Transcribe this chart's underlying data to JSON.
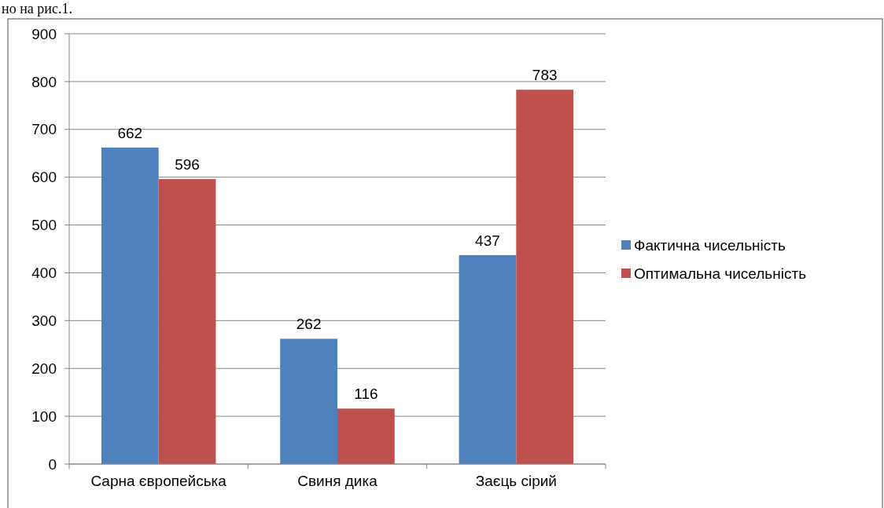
{
  "chart_data": {
    "type": "bar",
    "categories": [
      "Сарна європейська",
      "Свиня дика",
      "Заєць сірий"
    ],
    "series": [
      {
        "name": "Фактична чисельність",
        "color": "#4f81bd",
        "values": [
          662,
          262,
          437
        ]
      },
      {
        "name": "Оптимальна чисельність",
        "color": "#c0504d",
        "values": [
          596,
          116,
          783
        ]
      }
    ],
    "ylim": [
      0,
      900
    ],
    "yticks": [
      0,
      100,
      200,
      300,
      400,
      500,
      600,
      700,
      800,
      900
    ],
    "grid": "y",
    "legend": "right",
    "data_labels": true,
    "annotations": [
      "но на рис.1."
    ]
  }
}
